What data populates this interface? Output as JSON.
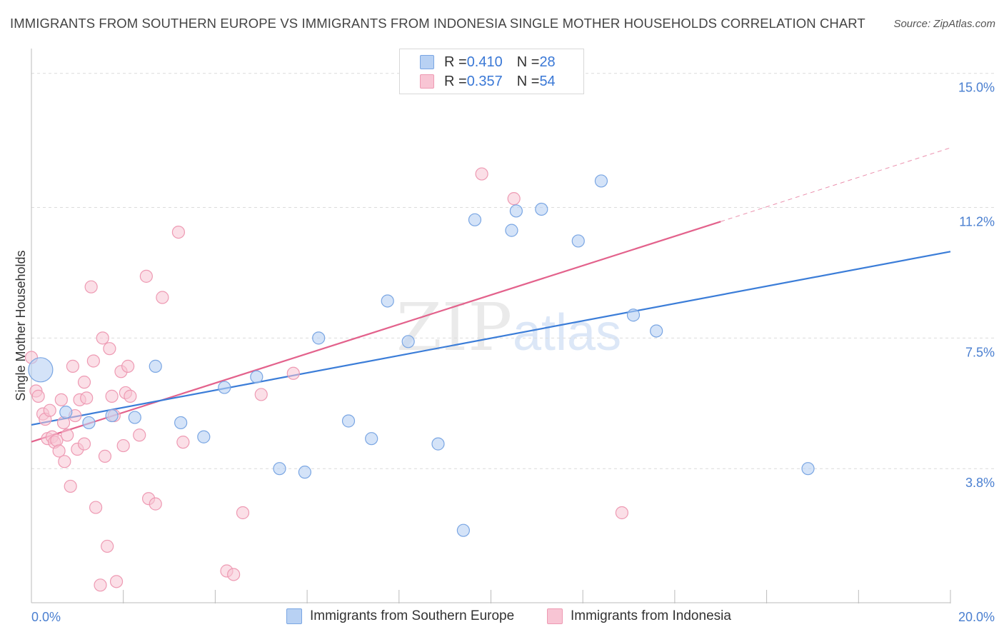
{
  "header": {
    "title": "IMMIGRANTS FROM SOUTHERN EUROPE VS IMMIGRANTS FROM INDONESIA SINGLE MOTHER HOUSEHOLDS CORRELATION CHART",
    "source": "Source: ZipAtlas.com"
  },
  "legend": {
    "row1": {
      "r_label": "R = ",
      "r_value": "0.410",
      "n_label": "N = ",
      "n_value": "28"
    },
    "row2": {
      "r_label": "R = ",
      "r_value": "0.357",
      "n_label": "N = ",
      "n_value": "54"
    }
  },
  "bottom_legend": {
    "series1": "Immigrants from Southern Europe",
    "series2": "Immigrants from Indonesia"
  },
  "watermark": {
    "zip": "ZIP",
    "atlas": "atlas"
  },
  "chart_data": {
    "type": "scatter",
    "title": "IMMIGRANTS FROM SOUTHERN EUROPE VS IMMIGRANTS FROM INDONESIA SINGLE MOTHER HOUSEHOLDS CORRELATION CHART",
    "xlabel": "",
    "ylabel": "Single Mother Households",
    "xlim": [
      0,
      20
    ],
    "ylim": [
      0,
      15.5
    ],
    "x_tick_labels": {
      "min": "0.0%",
      "max": "20.0%"
    },
    "y_ticks": [
      {
        "value": 3.8,
        "label": "3.8%"
      },
      {
        "value": 7.5,
        "label": "7.5%"
      },
      {
        "value": 11.2,
        "label": "11.2%"
      },
      {
        "value": 15.0,
        "label": "15.0%"
      }
    ],
    "colors": {
      "series1_fill": "#b8d1f3",
      "series1_stroke": "#7aa6e3",
      "series1_line": "#3b7dd8",
      "series2_fill": "#f8c5d4",
      "series2_stroke": "#ee9ab3",
      "series2_line": "#e3628c"
    },
    "series": [
      {
        "name": "Immigrants from Southern Europe",
        "R": 0.41,
        "N": 28,
        "trend": {
          "x0": 0,
          "y0": 5.04,
          "x1": 20,
          "y1": 9.95
        },
        "points": [
          {
            "x": 0.2,
            "y": 6.6,
            "big": true
          },
          {
            "x": 0.75,
            "y": 5.4
          },
          {
            "x": 1.25,
            "y": 5.1
          },
          {
            "x": 1.75,
            "y": 5.3
          },
          {
            "x": 2.25,
            "y": 5.25
          },
          {
            "x": 2.7,
            "y": 6.7
          },
          {
            "x": 3.25,
            "y": 5.1
          },
          {
            "x": 3.75,
            "y": 4.7
          },
          {
            "x": 4.2,
            "y": 6.1
          },
          {
            "x": 4.9,
            "y": 6.4
          },
          {
            "x": 5.4,
            "y": 3.8
          },
          {
            "x": 5.95,
            "y": 3.7
          },
          {
            "x": 6.25,
            "y": 7.5
          },
          {
            "x": 6.9,
            "y": 5.15
          },
          {
            "x": 7.4,
            "y": 4.65
          },
          {
            "x": 7.75,
            "y": 8.55
          },
          {
            "x": 8.2,
            "y": 7.4
          },
          {
            "x": 8.85,
            "y": 4.5
          },
          {
            "x": 9.4,
            "y": 2.05
          },
          {
            "x": 9.65,
            "y": 10.85
          },
          {
            "x": 10.45,
            "y": 10.55
          },
          {
            "x": 10.55,
            "y": 11.1
          },
          {
            "x": 11.1,
            "y": 11.15
          },
          {
            "x": 11.9,
            "y": 10.25
          },
          {
            "x": 12.4,
            "y": 11.95
          },
          {
            "x": 13.1,
            "y": 8.15
          },
          {
            "x": 13.6,
            "y": 7.7
          },
          {
            "x": 16.9,
            "y": 3.8
          }
        ]
      },
      {
        "name": "Immigrants from Indonesia",
        "R": 0.357,
        "N": 54,
        "trend": {
          "x0": 0,
          "y0": 4.56,
          "x1": 15,
          "y1": 10.8
        },
        "trend_dashed": {
          "x0": 15,
          "y0": 10.8,
          "x1": 20,
          "y1": 12.89
        },
        "points": [
          {
            "x": 0.0,
            "y": 6.95
          },
          {
            "x": 0.1,
            "y": 6.0
          },
          {
            "x": 0.15,
            "y": 5.85
          },
          {
            "x": 0.25,
            "y": 5.35
          },
          {
            "x": 0.3,
            "y": 5.2
          },
          {
            "x": 0.35,
            "y": 4.65
          },
          {
            "x": 0.4,
            "y": 5.45
          },
          {
            "x": 0.45,
            "y": 4.7
          },
          {
            "x": 0.5,
            "y": 4.55
          },
          {
            "x": 0.55,
            "y": 4.6
          },
          {
            "x": 0.6,
            "y": 4.3
          },
          {
            "x": 0.65,
            "y": 5.75
          },
          {
            "x": 0.7,
            "y": 5.1
          },
          {
            "x": 0.72,
            "y": 4.0
          },
          {
            "x": 0.78,
            "y": 4.75
          },
          {
            "x": 0.85,
            "y": 3.3
          },
          {
            "x": 0.9,
            "y": 6.7
          },
          {
            "x": 0.95,
            "y": 5.3
          },
          {
            "x": 1.0,
            "y": 4.35
          },
          {
            "x": 1.05,
            "y": 5.75
          },
          {
            "x": 1.15,
            "y": 4.5
          },
          {
            "x": 1.15,
            "y": 6.25
          },
          {
            "x": 1.2,
            "y": 5.8
          },
          {
            "x": 1.3,
            "y": 8.95
          },
          {
            "x": 1.35,
            "y": 6.85
          },
          {
            "x": 1.4,
            "y": 2.7
          },
          {
            "x": 1.5,
            "y": 0.5
          },
          {
            "x": 1.55,
            "y": 7.5
          },
          {
            "x": 1.6,
            "y": 4.15
          },
          {
            "x": 1.65,
            "y": 1.6
          },
          {
            "x": 1.7,
            "y": 7.2
          },
          {
            "x": 1.75,
            "y": 5.85
          },
          {
            "x": 1.8,
            "y": 5.3
          },
          {
            "x": 1.85,
            "y": 0.6
          },
          {
            "x": 1.95,
            "y": 6.55
          },
          {
            "x": 2.0,
            "y": 4.45
          },
          {
            "x": 2.05,
            "y": 5.95
          },
          {
            "x": 2.1,
            "y": 6.7
          },
          {
            "x": 2.15,
            "y": 5.85
          },
          {
            "x": 2.35,
            "y": 4.75
          },
          {
            "x": 2.5,
            "y": 9.25
          },
          {
            "x": 2.55,
            "y": 2.95
          },
          {
            "x": 2.7,
            "y": 2.8
          },
          {
            "x": 2.85,
            "y": 8.65
          },
          {
            "x": 3.2,
            "y": 10.5
          },
          {
            "x": 3.3,
            "y": 4.55
          },
          {
            "x": 4.25,
            "y": 0.9
          },
          {
            "x": 4.4,
            "y": 0.8
          },
          {
            "x": 4.6,
            "y": 2.55
          },
          {
            "x": 5.0,
            "y": 5.9
          },
          {
            "x": 5.7,
            "y": 6.5
          },
          {
            "x": 9.8,
            "y": 12.15
          },
          {
            "x": 10.5,
            "y": 11.45
          },
          {
            "x": 12.85,
            "y": 2.55
          }
        ]
      }
    ]
  }
}
